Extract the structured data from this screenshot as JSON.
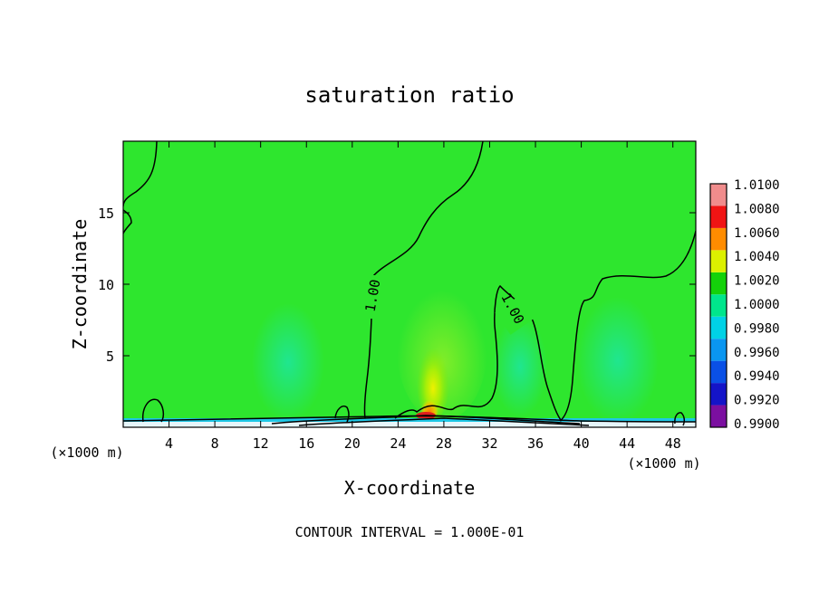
{
  "chart_data": {
    "type": "heatmap",
    "title": "saturation ratio",
    "xlabel": "X-coordinate",
    "ylabel": "Z-coordinate",
    "x_unit_left": "(×1000 m)",
    "x_unit_right": "(×1000 m)",
    "xlim": [
      0,
      50
    ],
    "ylim": [
      0,
      20
    ],
    "x_ticks": [
      4,
      8,
      12,
      16,
      20,
      24,
      28,
      32,
      36,
      40,
      44,
      48
    ],
    "y_ticks": [
      5,
      10,
      15
    ],
    "colorbar": {
      "labels": [
        "0.9900",
        "0.9920",
        "0.9940",
        "0.9960",
        "0.9980",
        "1.0000",
        "1.0020",
        "1.0040",
        "1.0060",
        "1.0080",
        "1.0100"
      ],
      "colors": [
        "#7b0fa0",
        "#1414c8",
        "#0a50e6",
        "#0a96f0",
        "#00d2e6",
        "#00e68c",
        "#14d20a",
        "#dcf000",
        "#ff8c00",
        "#f01414",
        "#f08c8c"
      ]
    },
    "background_color": "#2ee62e",
    "contour_labels": [
      {
        "text": "1.00",
        "x": 21.8,
        "z": 9.2
      },
      {
        "text": "1.00",
        "x": 34.0,
        "z": 8.3
      }
    ],
    "contour_interval_text": "CONTOUR INTERVAL = 1.000E-01"
  }
}
